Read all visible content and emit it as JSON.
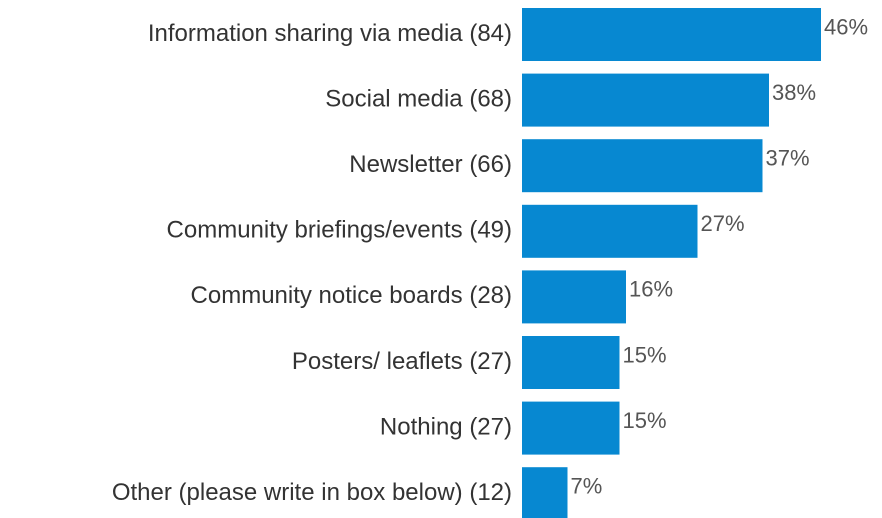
{
  "chart_data": {
    "type": "bar",
    "orientation": "horizontal",
    "categories": [
      "Information sharing via media (84)",
      "Social media (68)",
      "Newsletter (66)",
      "Community briefings/events (49)",
      "Community notice boards (28)",
      "Posters/ leaflets (27)",
      "Nothing (27)",
      "Other (please write in box below) (12)"
    ],
    "values": [
      46,
      38,
      37,
      27,
      16,
      15,
      15,
      7
    ],
    "value_labels": [
      "46%",
      "38%",
      "37%",
      "27%",
      "16%",
      "15%",
      "15%",
      "7%"
    ],
    "color": "#0788d1"
  }
}
